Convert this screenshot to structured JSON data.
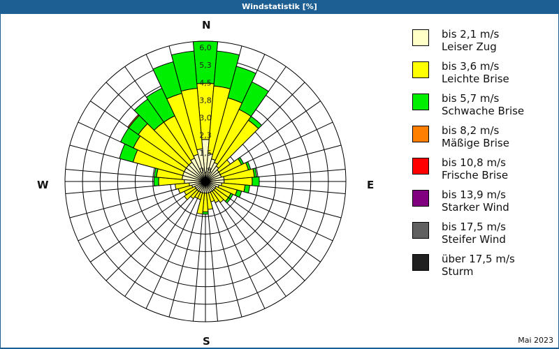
{
  "header": {
    "title": "Windstatistik [%]"
  },
  "compass": {
    "n": "N",
    "e": "E",
    "s": "S",
    "w": "W"
  },
  "footer": {
    "date": "Mai 2023"
  },
  "legend": [
    {
      "range": "bis 2,1 m/s",
      "label": "Leiser Zug",
      "color": "#ffffc8"
    },
    {
      "range": "bis 3,6 m/s",
      "label": "Leichte Brise",
      "color": "#ffff00"
    },
    {
      "range": "bis 5,7 m/s",
      "label": "Schwache Brise",
      "color": "#00ee00"
    },
    {
      "range": "bis 8,2 m/s",
      "label": "Mäßige Brise",
      "color": "#ff8000"
    },
    {
      "range": "bis 10,8 m/s",
      "label": "Frische Brise",
      "color": "#ff0000"
    },
    {
      "range": "bis 13,9 m/s",
      "label": "Starker Wind",
      "color": "#800080"
    },
    {
      "range": "bis 17,5 m/s",
      "label": "Steifer Wind",
      "color": "#606060"
    },
    {
      "range": "über 17,5 m/s",
      "label": "Sturm",
      "color": "#202020"
    }
  ],
  "chart_data": {
    "type": "wind-rose",
    "title": "Windstatistik [%]",
    "subtitle": "Mai 2023",
    "radial_ticks": [
      "0,8",
      "1,5",
      "2,3",
      "3,0",
      "3,8",
      "4,5",
      "5,3",
      "6,0"
    ],
    "rmax": 6.0,
    "sector_width_deg": 10,
    "directions_deg": [
      0,
      10,
      20,
      30,
      40,
      50,
      60,
      70,
      80,
      90,
      100,
      110,
      120,
      130,
      140,
      150,
      160,
      170,
      180,
      190,
      200,
      210,
      220,
      230,
      240,
      250,
      260,
      270,
      280,
      290,
      300,
      310,
      320,
      330,
      340,
      350
    ],
    "series": [
      {
        "name": "bis 2,1 m/s (Leiser Zug)",
        "color": "#ffffc8",
        "values": [
          1.8,
          1.2,
          1.0,
          0.9,
          0.8,
          0.7,
          0.7,
          0.7,
          0.8,
          0.8,
          0.7,
          0.6,
          0.5,
          0.5,
          0.5,
          0.5,
          0.5,
          0.5,
          0.5,
          0.5,
          0.5,
          0.5,
          0.5,
          0.5,
          0.5,
          0.6,
          0.7,
          0.9,
          1.0,
          1.0,
          1.0,
          1.0,
          1.0,
          1.1,
          1.2,
          1.4
        ]
      },
      {
        "name": "bis 3,6 m/s (Leichte Brise)",
        "color": "#ffff00",
        "values": [
          2.4,
          2.9,
          2.7,
          2.5,
          2.4,
          0.6,
          1.0,
          1.2,
          1.3,
          1.2,
          1.0,
          0.8,
          0.7,
          0.7,
          0.6,
          0.5,
          0.4,
          0.7,
          0.8,
          0.9,
          0.3,
          0.3,
          0.4,
          0.6,
          0.5,
          0.6,
          0.6,
          1.1,
          1.1,
          2.2,
          2.4,
          2.5,
          2.1,
          2.0,
          2.7,
          2.6
        ]
      },
      {
        "name": "bis 5,7 m/s (Schwache Brise)",
        "color": "#00ee00",
        "values": [
          1.8,
          1.5,
          1.4,
          1.3,
          0.2,
          0.0,
          0.1,
          0.1,
          0.1,
          0.3,
          0.2,
          0.2,
          0.1,
          0.1,
          0.0,
          0.0,
          0.0,
          0.0,
          0.1,
          0.0,
          0.0,
          0.0,
          0.0,
          0.0,
          0.0,
          0.0,
          0.0,
          0.2,
          0.1,
          0.6,
          0.6,
          0.5,
          1.2,
          1.3,
          1.4,
          1.6
        ]
      },
      {
        "name": "bis 8,2 m/s (Mäßige Brise)",
        "color": "#ff8000",
        "values": [
          0,
          0,
          0,
          0,
          0,
          0,
          0,
          0,
          0,
          0,
          0,
          0,
          0,
          0,
          0,
          0,
          0,
          0,
          0,
          0,
          0,
          0,
          0,
          0,
          0,
          0,
          0,
          0,
          0,
          0,
          0,
          0.05,
          0,
          0,
          0,
          0
        ]
      },
      {
        "name": "bis 10,8 m/s (Frische Brise)",
        "color": "#ff0000",
        "values": [
          0,
          0,
          0,
          0,
          0,
          0,
          0,
          0,
          0,
          0,
          0,
          0,
          0,
          0,
          0,
          0,
          0,
          0,
          0,
          0,
          0,
          0,
          0,
          0,
          0,
          0,
          0,
          0,
          0,
          0,
          0,
          0,
          0,
          0,
          0,
          0
        ]
      },
      {
        "name": "bis 13,9 m/s (Starker Wind)",
        "color": "#800080",
        "values": [
          0,
          0,
          0,
          0,
          0,
          0,
          0,
          0,
          0,
          0,
          0,
          0,
          0,
          0,
          0,
          0,
          0,
          0,
          0,
          0,
          0,
          0,
          0,
          0,
          0,
          0,
          0,
          0,
          0,
          0,
          0,
          0,
          0,
          0,
          0,
          0
        ]
      },
      {
        "name": "bis 17,5 m/s (Steifer Wind)",
        "color": "#606060",
        "values": [
          0,
          0,
          0,
          0,
          0,
          0,
          0,
          0,
          0,
          0,
          0,
          0,
          0,
          0,
          0,
          0,
          0,
          0,
          0,
          0,
          0,
          0,
          0,
          0,
          0,
          0,
          0,
          0,
          0,
          0,
          0,
          0,
          0,
          0,
          0,
          0
        ]
      },
      {
        "name": "über 17,5 m/s (Sturm)",
        "color": "#202020",
        "values": [
          0,
          0,
          0,
          0,
          0,
          0,
          0,
          0,
          0,
          0,
          0,
          0,
          0,
          0,
          0,
          0,
          0,
          0,
          0,
          0,
          0,
          0,
          0,
          0,
          0,
          0,
          0,
          0,
          0,
          0,
          0,
          0,
          0,
          0,
          0,
          0
        ]
      }
    ],
    "grid": true,
    "legend_position": "right"
  }
}
